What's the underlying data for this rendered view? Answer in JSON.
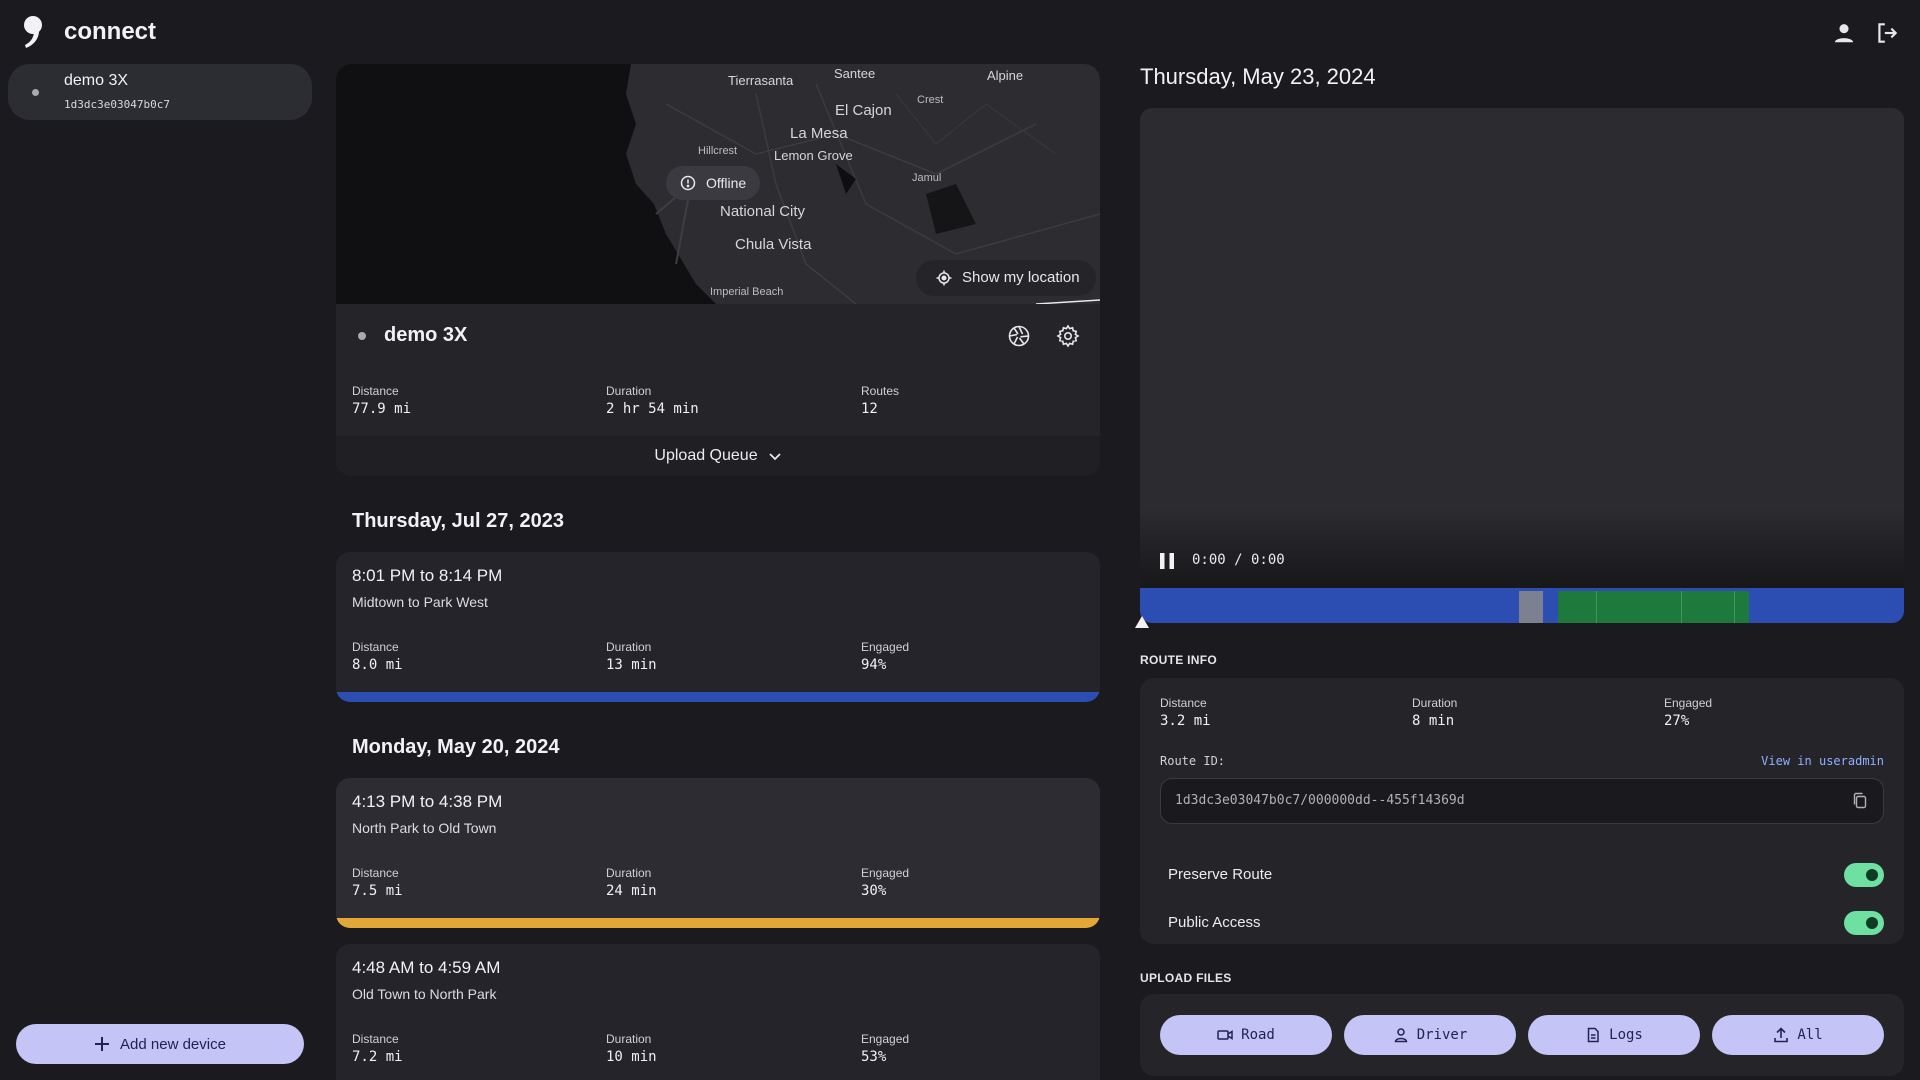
{
  "header": {
    "app_name": "connect",
    "icons": [
      "logo-icon",
      "account-icon",
      "logout-icon"
    ]
  },
  "sidebar": {
    "device": {
      "name": "demo 3X",
      "dongle_id": "1d3dc3e03047b0c7"
    },
    "add_device_label": "Add new device"
  },
  "map": {
    "labels": [
      "Tierrasanta",
      "Santee",
      "Alpine",
      "Crest",
      "El Cajon",
      "La Mesa",
      "Hillcrest",
      "Lemon Grove",
      "Jamul",
      "National City",
      "Chula Vista",
      "Imperial Beach"
    ],
    "offline_label": "Offline",
    "show_location_label": "Show my location"
  },
  "device_card": {
    "name": "demo 3X",
    "stats": [
      {
        "label": "Distance",
        "value": "77.9 mi"
      },
      {
        "label": "Duration",
        "value": "2 hr 54 min"
      },
      {
        "label": "Routes",
        "value": "12"
      }
    ],
    "upload_queue_label": "Upload Queue"
  },
  "routes": {
    "groups": [
      {
        "date": "Thursday, Jul 27, 2023",
        "items": [
          {
            "time": "8:01 PM to 8:14 PM",
            "places": "Midtown to Park West",
            "stats": [
              {
                "label": "Distance",
                "value": "8.0 mi"
              },
              {
                "label": "Duration",
                "value": "13 min"
              },
              {
                "label": "Engaged",
                "value": "94%"
              }
            ],
            "bar_color": "#2c4db1"
          }
        ]
      },
      {
        "date": "Monday, May 20, 2024",
        "items": [
          {
            "time": "4:13 PM to 4:38 PM",
            "places": "North Park to Old Town",
            "stats": [
              {
                "label": "Distance",
                "value": "7.5 mi"
              },
              {
                "label": "Duration",
                "value": "24 min"
              },
              {
                "label": "Engaged",
                "value": "30%"
              }
            ],
            "bar_color": "#e3a737"
          },
          {
            "time": "4:48 AM to 4:59 AM",
            "places": "Old Town to North Park",
            "stats": [
              {
                "label": "Distance",
                "value": "7.2 mi"
              },
              {
                "label": "Duration",
                "value": "10 min"
              },
              {
                "label": "Engaged",
                "value": "53%"
              }
            ]
          }
        ]
      }
    ]
  },
  "route_view": {
    "date": "Thursday, May 23, 2024",
    "player": {
      "time": "0:00 / 0:00",
      "state": "playing"
    },
    "timeline": {
      "base_color": "#2c4db1",
      "segments": [
        {
          "start": 0.4965,
          "end": 0.5275,
          "color": "#7b8190"
        },
        {
          "start": 0.5475,
          "end": 0.7975,
          "color": "#1e7a3c"
        }
      ],
      "position": 0.0
    },
    "route_info_heading": "ROUTE INFO",
    "stats": [
      {
        "label": "Distance",
        "value": "3.2 mi"
      },
      {
        "label": "Duration",
        "value": "8 min"
      },
      {
        "label": "Engaged",
        "value": "27%"
      }
    ],
    "route_id_label": "Route ID:",
    "route_id": "1d3dc3e03047b0c7/000000dd--455f14369d",
    "view_link": "View in useradmin",
    "toggles": [
      {
        "label": "Preserve Route",
        "on": true
      },
      {
        "label": "Public Access",
        "on": true
      }
    ],
    "upload_heading": "UPLOAD FILES",
    "upload_buttons": [
      "Road",
      "Driver",
      "Logs",
      "All"
    ],
    "colors": {
      "accent": "#c4c4f6",
      "toggle_on": "#6ee0a2"
    }
  }
}
